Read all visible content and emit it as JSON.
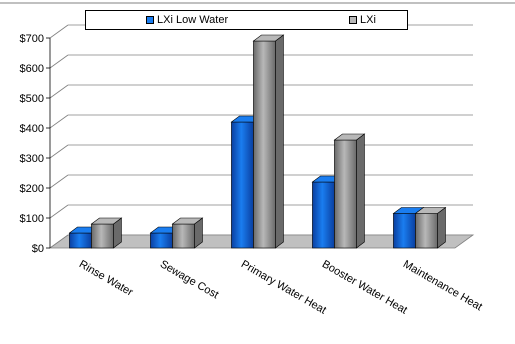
{
  "chart_data": {
    "type": "bar",
    "categories": [
      "Rinse Water",
      "Sewage Cost",
      "Primary Water Heat",
      "Booster Water Heat",
      "Maintenance Heat"
    ],
    "series": [
      {
        "name": "LXi Low Water",
        "values": [
          50,
          50,
          420,
          220,
          115
        ],
        "color": "#1a7df0",
        "color_dark": "#0a3fa0"
      },
      {
        "name": "LXi",
        "values": [
          80,
          80,
          690,
          360,
          115
        ],
        "color": "#b8b8b8",
        "color_dark": "#6a6a6a"
      }
    ],
    "ylim": [
      0,
      700
    ],
    "yticks": [
      "$0",
      "$100",
      "$200",
      "$300",
      "$400",
      "$500",
      "$600",
      "$700"
    ],
    "grid": true,
    "legend_position": "top",
    "floor_color": "#c0c0c0"
  }
}
